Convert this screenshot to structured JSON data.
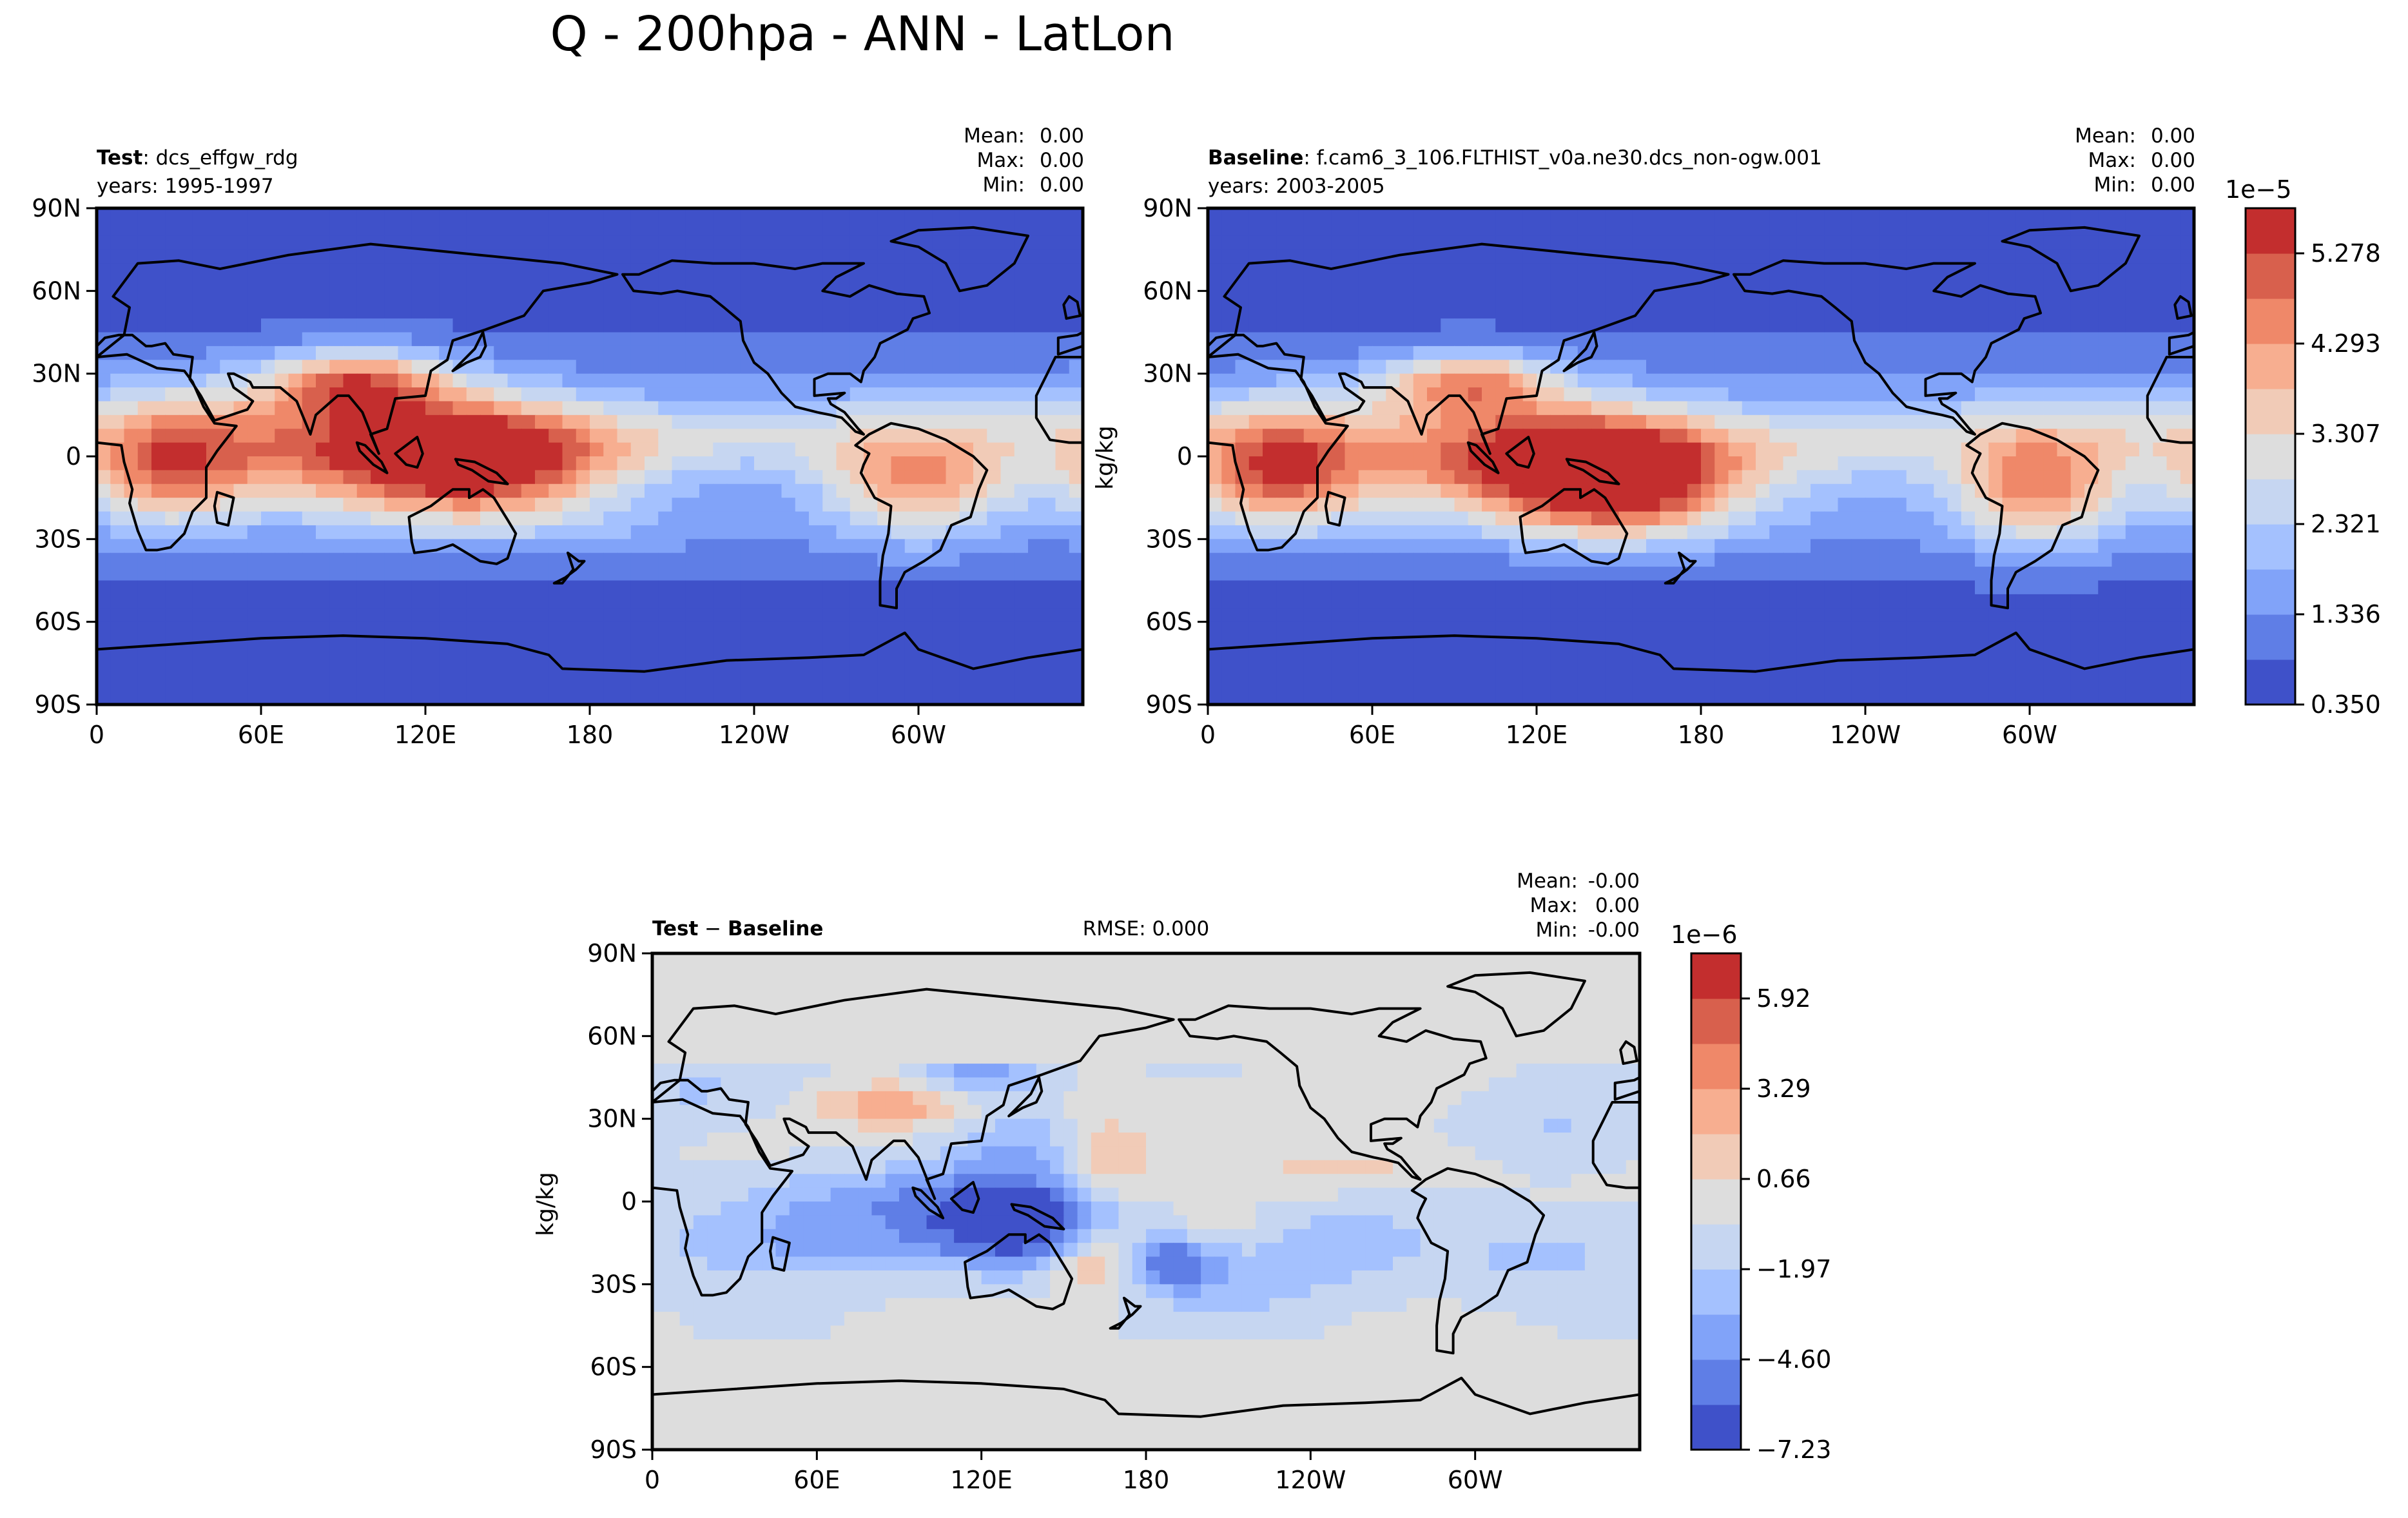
{
  "figure_title": "Q - 200hpa - ANN - LatLon",
  "colors": {
    "frame": "#000000",
    "coast": "#000000",
    "background": "#ffffff"
  },
  "chart_data": [
    {
      "id": "test",
      "type": "heatmap",
      "label_bold": "Test",
      "label_rest": ": dcs_effgw_rdg",
      "years": "years: 1995-1997",
      "stats": [
        {
          "name": "Mean:",
          "value": "0.00"
        },
        {
          "name": "Max:",
          "value": "0.00"
        },
        {
          "name": "Min:",
          "value": "0.00"
        }
      ],
      "x_ticks": [
        "0",
        "60E",
        "120E",
        "180",
        "120W",
        "60W"
      ],
      "y_ticks": [
        "90N",
        "60N",
        "30N",
        "0",
        "30S",
        "60S",
        "90S"
      ],
      "ylabel": "",
      "xlim": [
        0,
        360
      ],
      "ylim": [
        -90,
        90
      ],
      "field_variant": "test"
    },
    {
      "id": "baseline",
      "type": "heatmap",
      "label_bold": "Baseline",
      "label_rest": ": f.cam6_3_106.FLTHIST_v0a.ne30.dcs_non-ogw.001",
      "years": "years: 2003-2005",
      "stats": [
        {
          "name": "Mean:",
          "value": "0.00"
        },
        {
          "name": "Max:",
          "value": "0.00"
        },
        {
          "name": "Min:",
          "value": "0.00"
        }
      ],
      "x_ticks": [
        "0",
        "60E",
        "120E",
        "180",
        "120W",
        "60W"
      ],
      "y_ticks": [
        "90N",
        "60N",
        "30N",
        "0",
        "30S",
        "60S",
        "90S"
      ],
      "ylabel": "kg/kg",
      "xlim": [
        0,
        360
      ],
      "ylim": [
        -90,
        90
      ],
      "field_variant": "baseline",
      "colorbar": {
        "exponent": "1e−5",
        "min": 0.35,
        "max": 5.771,
        "levels": 11,
        "tick_labels": [
          "0.350",
          "1.336",
          "2.321",
          "3.307",
          "4.293",
          "5.278"
        ],
        "colors": [
          "#3f51c9",
          "#5f7ee6",
          "#81a3f9",
          "#a4c1fe",
          "#c6d6f1",
          "#dddddd",
          "#f1cbb7",
          "#f7ae90",
          "#ef8869",
          "#d8604d",
          "#c32e2e"
        ]
      }
    },
    {
      "id": "diff",
      "type": "heatmap",
      "label_bold": "Test",
      "label_mid": " − ",
      "label_bold2": "Baseline",
      "rmse": "RMSE: 0.000",
      "stats": [
        {
          "name": "Mean:",
          "value": "-0.00"
        },
        {
          "name": "Max:",
          "value": "0.00"
        },
        {
          "name": "Min:",
          "value": "-0.00"
        }
      ],
      "x_ticks": [
        "0",
        "60E",
        "120E",
        "180",
        "120W",
        "60W"
      ],
      "y_ticks": [
        "90N",
        "60N",
        "30N",
        "0",
        "30S",
        "60S",
        "90S"
      ],
      "ylabel": "kg/kg",
      "xlim": [
        0,
        360
      ],
      "ylim": [
        -90,
        90
      ],
      "field_variant": "diff",
      "colorbar": {
        "exponent": "1e−6",
        "min": -7.23,
        "max": 7.23,
        "levels": 11,
        "tick_labels": [
          "−7.23",
          "−4.60",
          "−1.97",
          "0.66",
          "3.29",
          "5.92"
        ],
        "colors": [
          "#3f51c9",
          "#5f7ee6",
          "#81a3f9",
          "#a4c1fe",
          "#c6d6f1",
          "#dddddd",
          "#f1cbb7",
          "#f7ae90",
          "#ef8869",
          "#d8604d",
          "#c32e2e"
        ]
      }
    }
  ]
}
